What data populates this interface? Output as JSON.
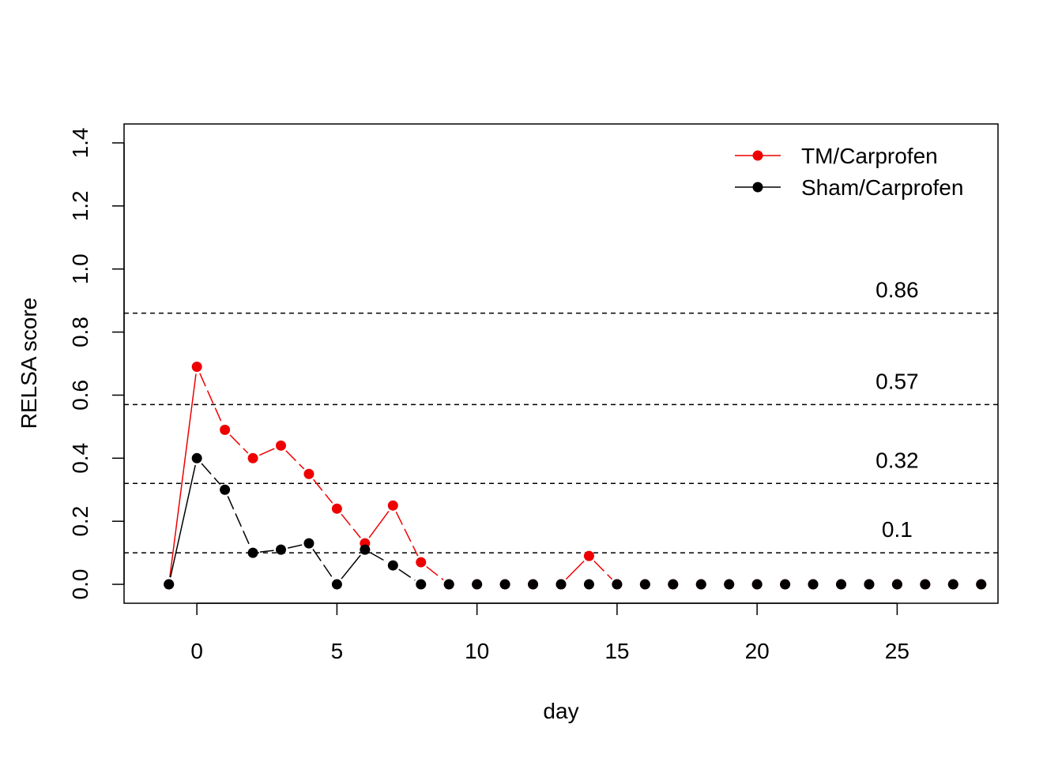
{
  "chart_data": {
    "type": "line",
    "title": "",
    "xlabel": "day",
    "ylabel": "RELSA score",
    "xlim": [
      -2.6,
      28.6
    ],
    "ylim": [
      -0.06,
      1.46
    ],
    "x_ticks": [
      0,
      5,
      10,
      15,
      20,
      25
    ],
    "y_ticks": [
      0.0,
      0.2,
      0.4,
      0.6,
      0.8,
      1.0,
      1.2,
      1.4
    ],
    "y_tick_labels": [
      "0.0",
      "0.2",
      "0.4",
      "0.6",
      "0.8",
      "1.0",
      "1.2",
      "1.4"
    ],
    "grid": false,
    "legend_position": "top-right",
    "x": [
      -1,
      0,
      1,
      2,
      3,
      4,
      5,
      6,
      7,
      8,
      9,
      10,
      11,
      12,
      13,
      14,
      15,
      16,
      17,
      18,
      19,
      20,
      21,
      22,
      23,
      24,
      25,
      26,
      27,
      28
    ],
    "series": [
      {
        "name": "TM/Carprofen",
        "color": "#ee0000",
        "values": [
          0,
          0.69,
          0.49,
          0.4,
          0.44,
          0.35,
          0.24,
          0.13,
          0.25,
          0.07,
          0,
          0,
          0,
          0,
          0,
          0.09,
          0,
          0,
          0,
          0,
          0,
          0,
          0,
          0,
          0,
          0,
          0,
          0,
          0,
          0
        ]
      },
      {
        "name": "Sham/Carprofen",
        "color": "#000000",
        "values": [
          0,
          0.4,
          0.3,
          0.1,
          0.11,
          0.13,
          0,
          0.11,
          0.06,
          0,
          0,
          0,
          0,
          0,
          0,
          0,
          0,
          0,
          0,
          0,
          0,
          0,
          0,
          0,
          0,
          0,
          0,
          0,
          0,
          0
        ]
      }
    ],
    "reference_lines": [
      {
        "value": 0.86,
        "label": "0.86"
      },
      {
        "value": 0.57,
        "label": "0.57"
      },
      {
        "value": 0.32,
        "label": "0.32"
      },
      {
        "value": 0.1,
        "label": "0.1"
      }
    ],
    "reference_label_x": 25
  }
}
